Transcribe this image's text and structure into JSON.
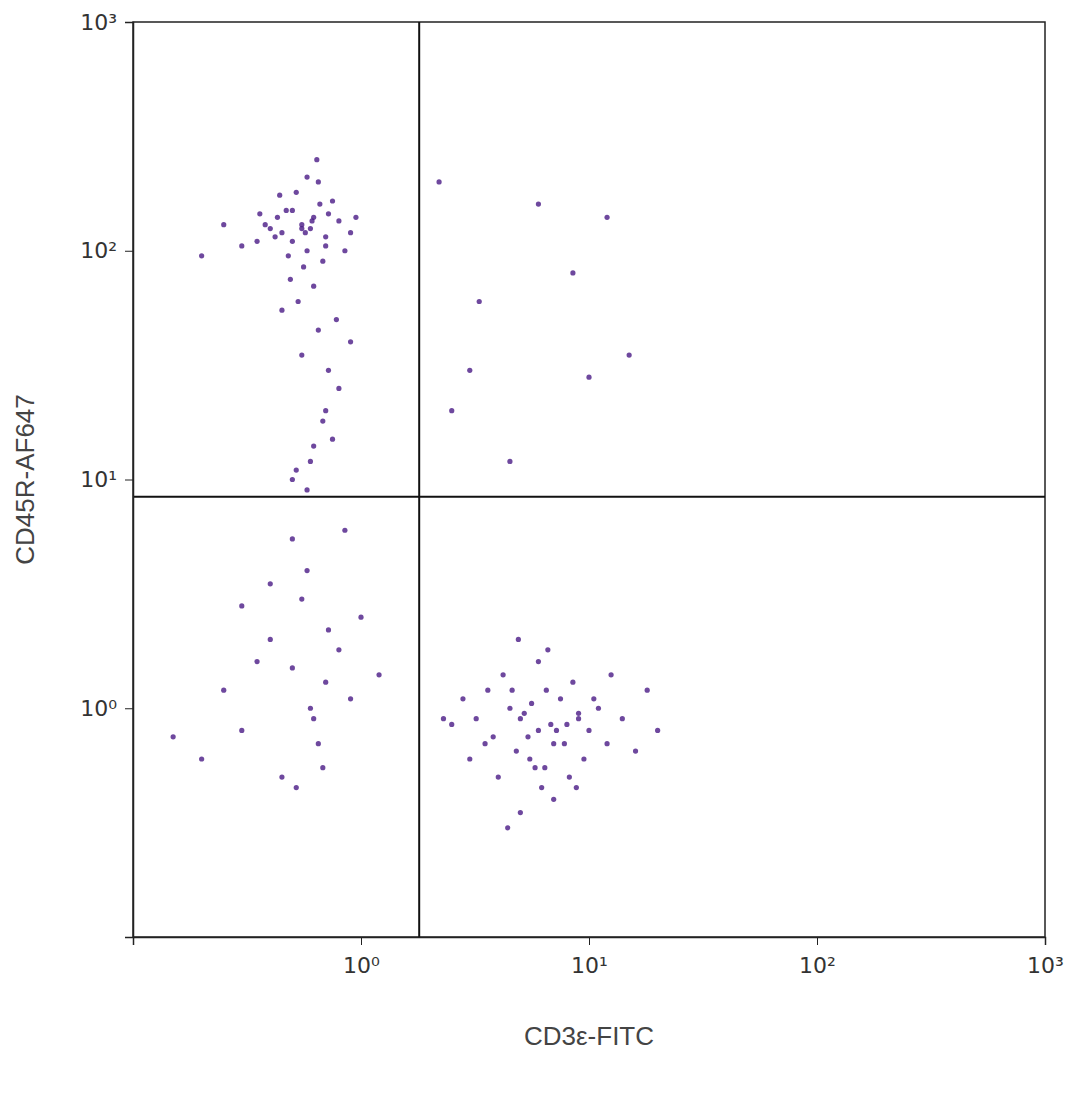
{
  "chart_data": {
    "type": "scatter",
    "x_label": "CD3ε-FITC",
    "y_label": "CD45R-AF647",
    "log": true,
    "grid": false,
    "marker": "circle",
    "color": "#4a1a86",
    "xlim": [
      0.1,
      1000
    ],
    "ylim": [
      0.1,
      1000
    ],
    "xticks": [
      {
        "value": 1,
        "label": "10⁰"
      },
      {
        "value": 10,
        "label": "10¹"
      },
      {
        "value": 100,
        "label": "10²"
      },
      {
        "value": 1000,
        "label": "10³"
      }
    ],
    "yticks": [
      {
        "value": 1,
        "label": "10⁰"
      },
      {
        "value": 10,
        "label": "10¹"
      },
      {
        "value": 100,
        "label": "10²"
      },
      {
        "value": 1000,
        "label": "10³"
      }
    ],
    "gate_x": 1.8,
    "gate_y": 8.4,
    "x": [
      0.55,
      0.45,
      0.62,
      0.5,
      0.7,
      0.4,
      0.58,
      0.66,
      0.35,
      0.8,
      0.52,
      0.48,
      0.6,
      0.72,
      0.43,
      0.56,
      0.38,
      0.9,
      0.65,
      0.5,
      0.3,
      0.62,
      0.75,
      0.47,
      0.55,
      0.68,
      0.42,
      0.58,
      0.85,
      0.25,
      0.53,
      0.61,
      0.44,
      0.7,
      0.36,
      0.57,
      0.95,
      0.49,
      0.64,
      0.2,
      6,
      5,
      7,
      4.5,
      8,
      5.5,
      9,
      3.8,
      6.5,
      10,
      4,
      7.5,
      5.2,
      12,
      6.2,
      3.2,
      8.5,
      4.8,
      6.8,
      11,
      2.8,
      5.8,
      9.5,
      4.2,
      7.2,
      14,
      5,
      3.5,
      6,
      8.2,
      2.5,
      7,
      4.6,
      10.5,
      5.4,
      16,
      6.6,
      3,
      9,
      4.4,
      7.8,
      5.6,
      12.5,
      3.6,
      6.4,
      20,
      4.9,
      8.8,
      2.3,
      18,
      0.5,
      0.6,
      0.4,
      0.7,
      0.3,
      0.55,
      0.8,
      0.25,
      0.65,
      1.0,
      0.45,
      0.2,
      0.58,
      0.9,
      0.35,
      0.62,
      0.15,
      0.5,
      1.2,
      0.72,
      0.4,
      0.68,
      0.3,
      0.52,
      0.85,
      0.6,
      0.7,
      0.55,
      0.75,
      0.5,
      0.65,
      0.8,
      0.58,
      0.72,
      0.45,
      0.68,
      0.9,
      0.52,
      0.62,
      0.78,
      2.5,
      3.3,
      6,
      8.5,
      12,
      3,
      4.5,
      10,
      15,
      2.2
    ],
    "values": [
      130,
      120,
      140,
      150,
      115,
      125,
      100,
      160,
      110,
      135,
      180,
      95,
      125,
      145,
      140,
      85,
      130,
      120,
      200,
      110,
      105,
      70,
      165,
      150,
      125,
      90,
      115,
      210,
      100,
      130,
      60,
      135,
      175,
      105,
      145,
      120,
      140,
      75,
      250,
      95,
      0.8,
      0.9,
      0.7,
      1.0,
      0.85,
      0.6,
      0.9,
      0.75,
      1.2,
      0.8,
      0.5,
      1.1,
      0.95,
      0.7,
      0.45,
      0.9,
      1.3,
      0.65,
      0.85,
      1.0,
      1.1,
      0.55,
      0.6,
      1.4,
      0.8,
      0.9,
      0.35,
      0.7,
      1.6,
      0.5,
      0.85,
      0.4,
      1.2,
      1.1,
      0.75,
      0.65,
      1.8,
      0.6,
      0.95,
      0.3,
      0.7,
      1.05,
      1.4,
      1.2,
      0.55,
      0.8,
      2.0,
      0.45,
      0.9,
      1.2,
      1.5,
      1.0,
      2.0,
      1.3,
      0.8,
      3.0,
      1.8,
      1.2,
      0.7,
      2.5,
      0.5,
      0.6,
      4.0,
      1.1,
      1.6,
      0.9,
      0.75,
      5.5,
      1.4,
      2.2,
      3.5,
      0.55,
      2.8,
      0.45,
      6.0,
      12,
      20,
      35,
      15,
      10,
      45,
      25,
      9,
      30,
      55,
      18,
      40,
      11,
      14,
      50,
      20,
      60,
      160,
      80,
      140,
      30,
      12,
      28,
      35,
      200
    ]
  }
}
